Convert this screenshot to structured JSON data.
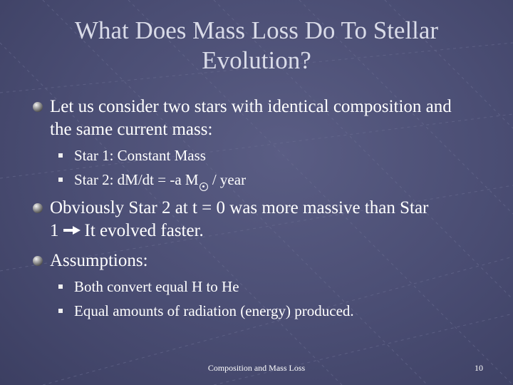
{
  "slide": {
    "title": "What Does Mass Loss Do To Stellar Evolution?",
    "bullets": [
      {
        "text": "Let us consider two stars with identical composition and the same current mass:",
        "sub_bullets": [
          {
            "text": "Star 1: Constant Mass"
          },
          {
            "prefix": "Star 2: dM/dt = -a M",
            "symbol": "sun",
            "suffix": " / year"
          }
        ]
      },
      {
        "line1": "Obviously Star 2 at t = 0 was more massive than Star",
        "line2_before": "1",
        "arrow": "right-arrow",
        "line2_after": "It evolved faster."
      },
      {
        "text": "Assumptions:",
        "sub_bullets": [
          {
            "text": "Both convert equal H to He"
          },
          {
            "text": "Equal amounts of radiation (energy) produced."
          }
        ]
      }
    ]
  },
  "footer": {
    "text": "Composition and Mass Loss",
    "page_number": "10"
  },
  "colors": {
    "background": "#4a4d73",
    "title": "#d9dbe8",
    "text": "#ffffff"
  }
}
